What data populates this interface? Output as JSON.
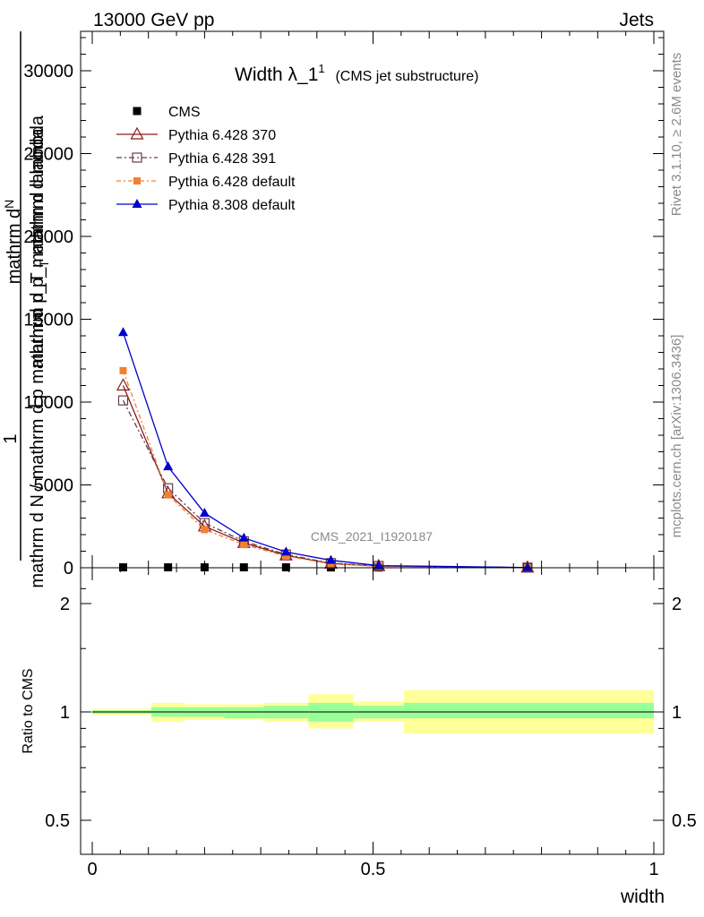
{
  "header": {
    "left_label": "13000 GeV pp",
    "right_label": "Jets"
  },
  "side_labels": {
    "rivet": "Rivet 3.1.10, ≥ 2.6M events",
    "mcplots": "mcplots.cern.ch [arXiv:1306.3436]"
  },
  "chart_data": [
    {
      "type": "line",
      "title": "Width λ_1",
      "title_sup": "1",
      "subtitle": "(CMS jet substructure)",
      "watermark": "CMS_2021_I1920187",
      "ylabel": {
        "one": "1",
        "num": "mathrm d",
        "num2": "N",
        "den": "mathrm d p_",
        "den_sub": "T",
        "den2": " mathrm d lambda",
        "full": "mathrm d N / mathrm d p mathrm d p_T mathrm d lambda"
      },
      "xlim": [
        0,
        1
      ],
      "ylim": [
        0,
        32000
      ],
      "y_ticks": [
        "0",
        "5000",
        "10000",
        "15000",
        "20000",
        "25000",
        "30000"
      ],
      "y_tick_values": [
        0,
        5000,
        10000,
        15000,
        20000,
        25000,
        30000
      ],
      "x_bins": [
        0.0,
        0.105,
        0.165,
        0.235,
        0.305,
        0.385,
        0.465,
        0.555,
        1.0
      ],
      "x": [
        0.055,
        0.135,
        0.2,
        0.27,
        0.345,
        0.425,
        0.51,
        0.775
      ],
      "series": [
        {
          "name": "CMS",
          "marker": "square-filled",
          "color": "#000000",
          "dash": "",
          "values": [
            25,
            25,
            25,
            25,
            25,
            20,
            15,
            10
          ]
        },
        {
          "name": "Pythia 6.428 370",
          "marker": "triangle-open",
          "color": "#8b1a1a",
          "dash": "",
          "values": [
            11000,
            4500,
            2500,
            1500,
            750,
            250,
            100,
            10
          ]
        },
        {
          "name": "Pythia 6.428 391",
          "marker": "square-open",
          "color": "#6b3a4a",
          "dash": "6,3,2,3",
          "values": [
            10100,
            4800,
            2700,
            1600,
            800,
            280,
            110,
            12
          ]
        },
        {
          "name": "Pythia 6.428 default",
          "marker": "square-filled-small",
          "color": "#f28030",
          "dash": "5,3,2,3",
          "values": [
            11900,
            4400,
            2300,
            1400,
            700,
            230,
            90,
            10
          ]
        },
        {
          "name": "Pythia 8.308 default",
          "marker": "triangle-filled",
          "color": "#0000cc",
          "dash": "",
          "values": [
            14200,
            6100,
            3300,
            1800,
            950,
            450,
            130,
            15
          ]
        }
      ]
    },
    {
      "type": "area",
      "ylabel": "Ratio to CMS",
      "xlabel": "width",
      "xlim": [
        0,
        1
      ],
      "ylim": [
        0.35,
        2.3
      ],
      "y_ticks": [
        "0.5",
        "1",
        "2"
      ],
      "y_tick_values": [
        0.5,
        1,
        2
      ],
      "x_ticks": [
        "0",
        "0.5",
        "1"
      ],
      "x_tick_values": [
        0,
        0.5,
        1
      ],
      "bands": [
        {
          "name": "stat",
          "color": "#99ff99",
          "lower": [
            0.99,
            0.97,
            0.97,
            0.96,
            0.96,
            0.94,
            0.96,
            0.96
          ],
          "upper": [
            1.01,
            1.03,
            1.03,
            1.03,
            1.04,
            1.06,
            1.04,
            1.06
          ]
        },
        {
          "name": "total",
          "color": "#ffff99",
          "lower": [
            0.98,
            0.94,
            0.95,
            0.95,
            0.94,
            0.9,
            0.94,
            0.87
          ],
          "upper": [
            1.02,
            1.06,
            1.05,
            1.05,
            1.06,
            1.12,
            1.07,
            1.15
          ]
        }
      ]
    }
  ]
}
